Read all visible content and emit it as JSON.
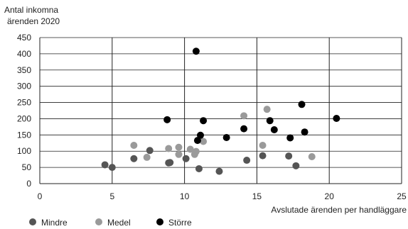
{
  "chart_data": {
    "type": "scatter",
    "title": "",
    "ylabel": [
      "Antal inkomna",
      "ärenden 2020"
    ],
    "xlabel": "Avslutade ärenden per handläggare",
    "xlim": [
      0,
      25
    ],
    "ylim": [
      0,
      450
    ],
    "xticks": [
      "0",
      "5",
      "10",
      "15",
      "20",
      "25"
    ],
    "yticks": [
      "0",
      "50",
      "100",
      "150",
      "200",
      "250",
      "300",
      "350",
      "400",
      "450"
    ],
    "grid": "vertical-major-and-horizontal",
    "legend_position": "bottom-left",
    "series": [
      {
        "name": "Mindre",
        "color": "#555555",
        "points": [
          [
            4.5,
            58
          ],
          [
            5.0,
            50
          ],
          [
            6.5,
            77
          ],
          [
            7.6,
            102
          ],
          [
            8.9,
            64
          ],
          [
            9.0,
            65
          ],
          [
            10.1,
            77
          ],
          [
            11.0,
            46
          ],
          [
            12.4,
            38
          ],
          [
            14.3,
            72
          ],
          [
            15.4,
            86
          ],
          [
            17.2,
            85
          ],
          [
            17.7,
            55
          ]
        ]
      },
      {
        "name": "Medel",
        "color": "#9a9a9a",
        "points": [
          [
            6.5,
            118
          ],
          [
            7.4,
            81
          ],
          [
            8.9,
            108
          ],
          [
            9.6,
            112
          ],
          [
            9.6,
            90
          ],
          [
            10.4,
            106
          ],
          [
            10.7,
            90
          ],
          [
            10.8,
            99
          ],
          [
            11.3,
            130
          ],
          [
            14.1,
            209
          ],
          [
            15.4,
            118
          ],
          [
            15.7,
            229
          ],
          [
            18.8,
            83
          ]
        ]
      },
      {
        "name": "Större",
        "color": "#000000",
        "points": [
          [
            8.8,
            197
          ],
          [
            10.8,
            408
          ],
          [
            10.9,
            133
          ],
          [
            11.1,
            149
          ],
          [
            11.3,
            194
          ],
          [
            12.9,
            142
          ],
          [
            14.1,
            169
          ],
          [
            15.9,
            194
          ],
          [
            16.2,
            166
          ],
          [
            17.3,
            141
          ],
          [
            18.1,
            244
          ],
          [
            18.3,
            159
          ],
          [
            20.5,
            201
          ]
        ]
      }
    ]
  }
}
